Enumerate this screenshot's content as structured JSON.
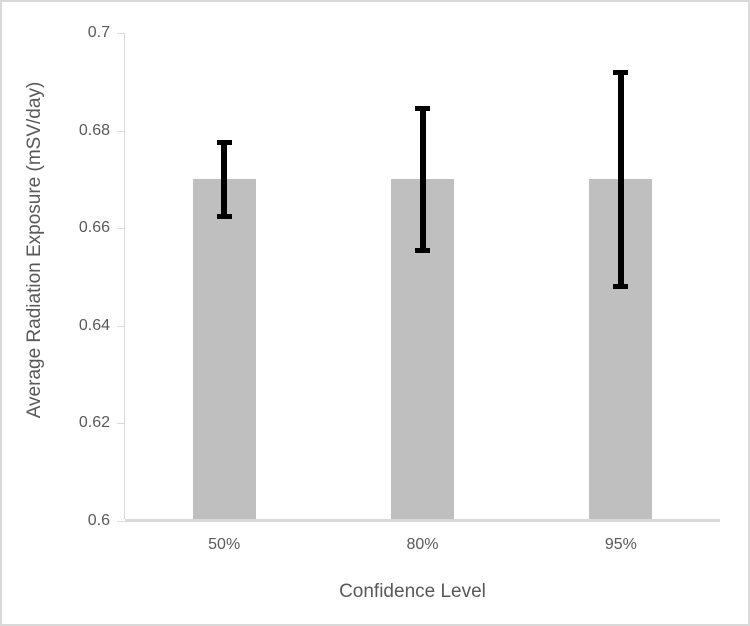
{
  "window": {
    "background_color": "#FFFFFF",
    "border_color": "#D9D9D9"
  },
  "chart_data": {
    "type": "bar",
    "title": "",
    "xlabel": "Confidence Level",
    "ylabel": "Average Radiation Exposure (mSV/day)",
    "categories": [
      "50%",
      "80%",
      "95%"
    ],
    "values": [
      0.67,
      0.67,
      0.67
    ],
    "error_bars": [
      {
        "low": 0.6625,
        "high": 0.6775
      },
      {
        "low": 0.6555,
        "high": 0.6845
      },
      {
        "low": 0.648,
        "high": 0.692
      }
    ],
    "ylim": [
      0.6,
      0.7
    ],
    "yticks": [
      {
        "value": 0.6,
        "label": "0.6"
      },
      {
        "value": 0.62,
        "label": "0.62"
      },
      {
        "value": 0.64,
        "label": "0.64"
      },
      {
        "value": 0.66,
        "label": "0.66"
      },
      {
        "value": 0.68,
        "label": "0.68"
      },
      {
        "value": 0.7,
        "label": "0.7"
      }
    ],
    "grid": false,
    "legend": false,
    "bar_color": "#BFBFBF",
    "error_bar_color": "#000000",
    "axis_line_color": "#D9D9D9",
    "text_color": "#595959"
  }
}
